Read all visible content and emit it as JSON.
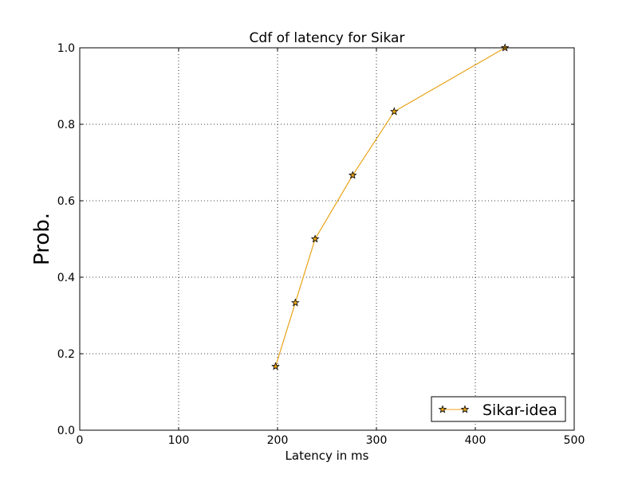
{
  "chart_data": {
    "type": "line",
    "title": "Cdf of latency for Sikar",
    "xlabel": "Latency in ms",
    "ylabel": "Prob.",
    "xlim": [
      0,
      500
    ],
    "ylim": [
      0,
      1.0
    ],
    "xticks": [
      0,
      100,
      200,
      300,
      400,
      500
    ],
    "xtick_labels": [
      "0",
      "100",
      "200",
      "300",
      "400",
      "500"
    ],
    "yticks": [
      0.0,
      0.2,
      0.4,
      0.6,
      0.8,
      1.0
    ],
    "ytick_labels": [
      "0.0",
      "0.2",
      "0.4",
      "0.6",
      "0.8",
      "1.0"
    ],
    "grid": true,
    "legend_position": "bottom-right",
    "series": [
      {
        "name": "Sikar-idea",
        "color": "#e8a317",
        "marker": "star",
        "x": [
          198,
          218,
          238,
          276,
          318,
          430
        ],
        "y": [
          0.1667,
          0.3333,
          0.5,
          0.6667,
          0.8333,
          1.0
        ]
      }
    ]
  }
}
